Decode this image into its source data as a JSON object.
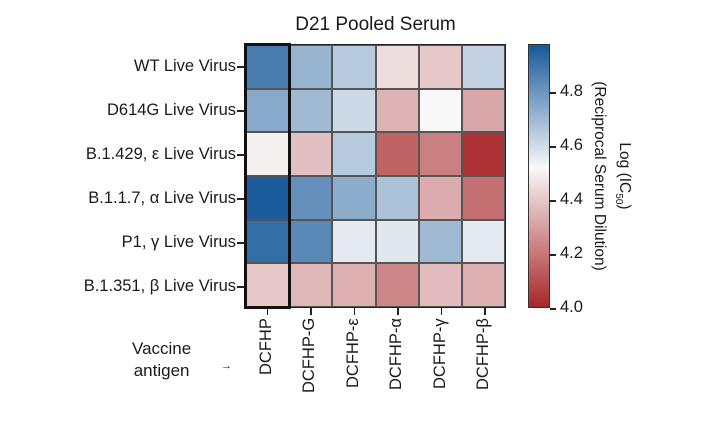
{
  "chart_data": {
    "type": "heatmap",
    "title": "D21 Pooled Serum",
    "xlabel": "Vaccine antigen",
    "ylabel": "",
    "x_categories": [
      "DCFHP",
      "DCFHP-G",
      "DCFHP-ε",
      "DCFHP-α",
      "DCFHP-γ",
      "DCFHP-β"
    ],
    "y_categories": [
      "WT Live Virus",
      "D614G Live Virus",
      "B.1.429, ε Live Virus",
      "B.1.1.7, α Live Virus",
      "P1, γ Live Virus",
      "B.1.351, β Live Virus"
    ],
    "values": [
      [
        4.88,
        4.72,
        4.65,
        4.45,
        4.4,
        4.63
      ],
      [
        4.75,
        4.7,
        4.61,
        4.35,
        4.52,
        4.32
      ],
      [
        4.5,
        4.38,
        4.65,
        4.15,
        4.22,
        4.03
      ],
      [
        4.97,
        4.82,
        4.74,
        4.68,
        4.33,
        4.18
      ],
      [
        4.92,
        4.84,
        4.56,
        4.57,
        4.7,
        4.56
      ],
      [
        4.4,
        4.36,
        4.34,
        4.24,
        4.37,
        4.34
      ]
    ],
    "highlighted_column": "DCFHP",
    "colorbar": {
      "label_line1": "Log (IC50)",
      "label_line2": "(Reciprocal Serum Dilution)",
      "range": [
        4.0,
        4.98
      ],
      "ticks": [
        4.0,
        4.2,
        4.4,
        4.6,
        4.8
      ],
      "colors": {
        "low": "#a8262a",
        "mid": "#f8f8f8",
        "high": "#17599b"
      },
      "mid_value": 4.52
    }
  },
  "labels": {
    "title": "D21 Pooled Serum",
    "axis_note_line1": "Vaccine",
    "axis_note_line2": "antigen",
    "arrow": "→",
    "cbar_label_main": "Log (IC",
    "cbar_label_sub": "50",
    "cbar_label_end": ")",
    "cbar_label_line2": "(Reciprocal Serum Dilution)"
  }
}
